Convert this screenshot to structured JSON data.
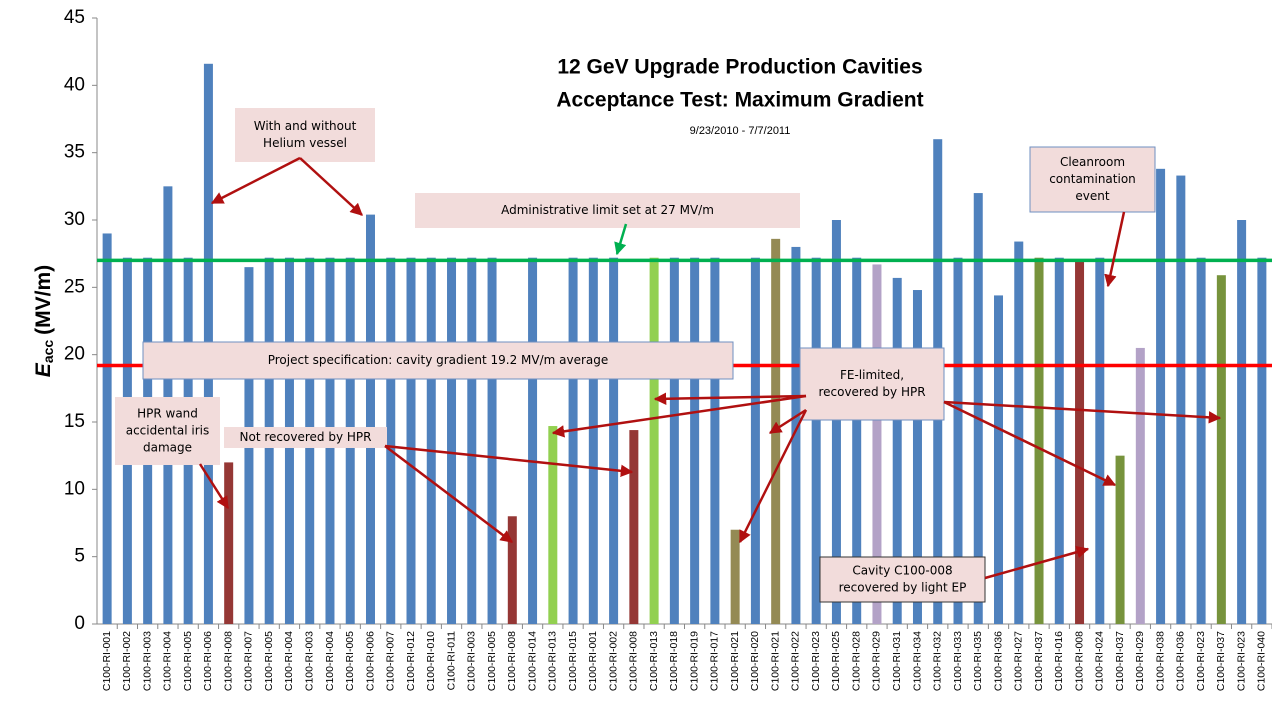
{
  "chart_data": {
    "type": "bar",
    "title": [
      "12 GeV Upgrade Production Cavities",
      "Acceptance Test: Maximum Gradient"
    ],
    "subtitle": "9/23/2010 - 7/7/2011",
    "ylabel": {
      "symbol": "E",
      "subscript": "acc",
      "unit": "(MV/m)"
    },
    "categories": [
      "C100-RI-001",
      "C100-RI-002",
      "C100-RI-003",
      "C100-RI-004",
      "C100-RI-005",
      "C100-RI-006",
      "C100-RI-008",
      "C100-RI-007",
      "C100-RI-005",
      "C100-RI-004",
      "C100-RI-003",
      "C100-RI-004",
      "C100-RI-005",
      "C100-RI-006",
      "C100-RI-007",
      "C100-RI-012",
      "C100-RI-010",
      "C100-RI-011",
      "C100-RI-003",
      "C100-RI-005",
      "C100-RI-008",
      "C100-RI-014",
      "C100-RI-013",
      "C100-RI-015",
      "C100-RI-001",
      "C100-RI-002",
      "C100-RI-008",
      "C100-RI-013",
      "C100-RI-018",
      "C100-RI-019",
      "C100-RI-017",
      "C100-RI-021",
      "C100-RI-020",
      "C100-RI-021",
      "C100-RI-022",
      "C100-RI-023",
      "C100-RI-025",
      "C100-RI-028",
      "C100-RI-029",
      "C100-RI-031",
      "C100-RI-034",
      "C100-RI-032",
      "C100-RI-033",
      "C100-RI-035",
      "C100-RI-036",
      "C100-RI-027",
      "C100-RI-037",
      "C100-RI-016",
      "C100-RI-008",
      "C100-RI-024",
      "C100-RI-037",
      "C100-RI-029",
      "C100-RI-038",
      "C100-RI-036",
      "C100-RI-023",
      "C100-RI-037",
      "C100-RI-023",
      "C100-RI-040"
    ],
    "values": [
      29.0,
      27.2,
      27.2,
      32.5,
      27.2,
      41.6,
      12.0,
      26.5,
      27.2,
      27.2,
      27.2,
      27.2,
      27.2,
      30.4,
      27.2,
      27.2,
      27.2,
      27.2,
      27.2,
      27.2,
      8.0,
      27.2,
      14.7,
      27.2,
      27.2,
      27.2,
      14.4,
      27.2,
      27.2,
      27.2,
      27.2,
      7.0,
      27.2,
      28.6,
      28.0,
      27.2,
      30.0,
      27.2,
      26.7,
      25.7,
      24.8,
      36.0,
      27.2,
      32.0,
      24.4,
      28.4,
      27.2,
      27.2,
      27.0,
      27.2,
      12.5,
      20.5,
      33.8,
      33.3,
      27.2,
      25.9,
      30.0,
      27.2
    ],
    "colors": [
      "#4f81bd",
      "#4f81bd",
      "#4f81bd",
      "#4f81bd",
      "#4f81bd",
      "#4f81bd",
      "#953735",
      "#4f81bd",
      "#4f81bd",
      "#4f81bd",
      "#4f81bd",
      "#4f81bd",
      "#4f81bd",
      "#4f81bd",
      "#4f81bd",
      "#4f81bd",
      "#4f81bd",
      "#4f81bd",
      "#4f81bd",
      "#4f81bd",
      "#953735",
      "#4f81bd",
      "#92d050",
      "#4f81bd",
      "#4f81bd",
      "#4f81bd",
      "#953735",
      "#92d050",
      "#4f81bd",
      "#4f81bd",
      "#4f81bd",
      "#948a54",
      "#4f81bd",
      "#948a54",
      "#4f81bd",
      "#4f81bd",
      "#4f81bd",
      "#4f81bd",
      "#b3a2c7",
      "#4f81bd",
      "#4f81bd",
      "#4f81bd",
      "#4f81bd",
      "#4f81bd",
      "#4f81bd",
      "#4f81bd",
      "#77933c",
      "#4f81bd",
      "#953735",
      "#4f81bd",
      "#77933c",
      "#b3a2c7",
      "#4f81bd",
      "#4f81bd",
      "#4f81bd",
      "#77933c",
      "#4f81bd",
      "#4f81bd"
    ],
    "ylim": [
      0,
      45
    ],
    "yticks": [
      0,
      5,
      10,
      15,
      20,
      25,
      30,
      35,
      40,
      45
    ],
    "reference_lines": [
      {
        "value": 27,
        "color": "#00b050"
      },
      {
        "value": 19.2,
        "color": "#ff0000"
      }
    ],
    "annotations": [
      {
        "lines": [
          "With and without",
          "Helium vessel"
        ]
      },
      {
        "lines": [
          "Administrative limit set at 27 MV/m"
        ]
      },
      {
        "lines": [
          "Project specification: cavity gradient 19.2 MV/m average"
        ]
      },
      {
        "lines": [
          "HPR wand",
          "accidental iris",
          "damage"
        ]
      },
      {
        "lines": [
          "Not recovered by HPR"
        ]
      },
      {
        "lines": [
          "FE-limited,",
          "recovered by HPR"
        ]
      },
      {
        "lines": [
          "Cleanroom",
          "contamination",
          "event"
        ]
      },
      {
        "lines": [
          "Cavity C100-008",
          "recovered by light EP"
        ]
      }
    ]
  }
}
